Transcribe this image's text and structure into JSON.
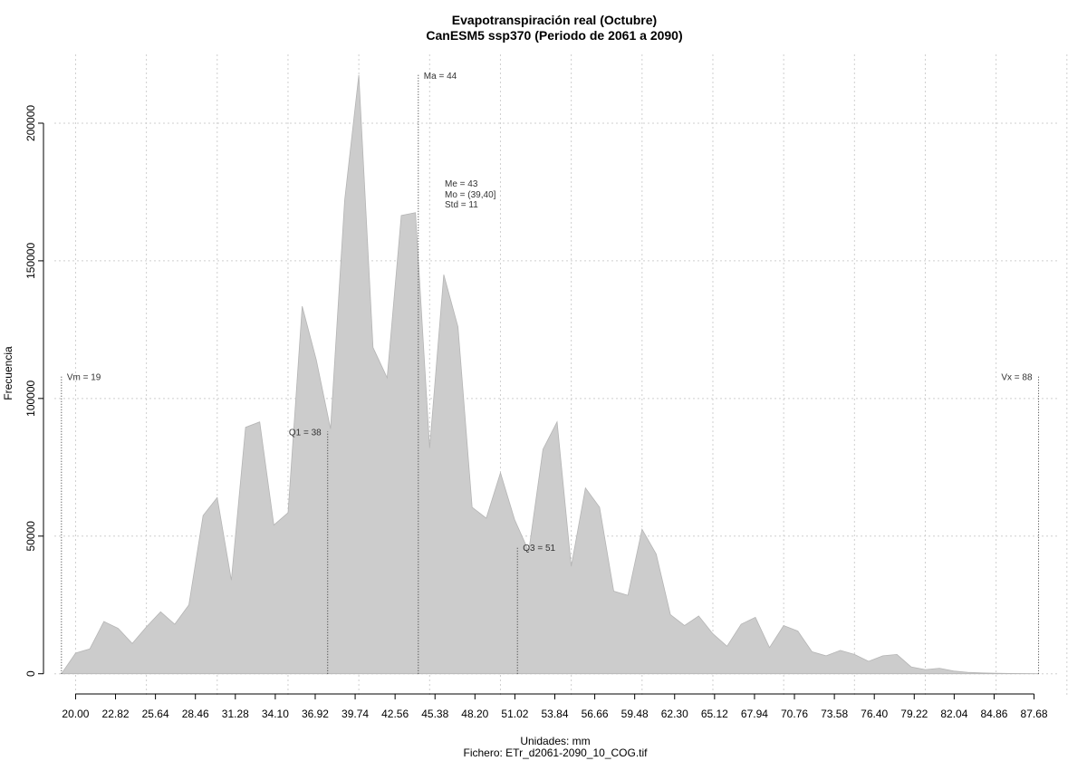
{
  "chart_data": {
    "type": "area",
    "title": "Evapotranspiración real (Octubre)",
    "subtitle": "CanESM5 ssp370 (Periodo de 2061 a 2090)",
    "xlabel": "Unidades: mm",
    "file_label": "Fichero: ETr_d2061-2090_10_COG.tif",
    "ylabel": "Frecuencia",
    "xlim": [
      18.5,
      89.5
    ],
    "ylim": [
      -8000,
      225000
    ],
    "x_ticks": [
      "20.00",
      "22.82",
      "25.64",
      "28.46",
      "31.28",
      "34.10",
      "36.92",
      "39.74",
      "42.56",
      "45.38",
      "48.20",
      "51.02",
      "53.84",
      "56.66",
      "59.48",
      "62.30",
      "65.12",
      "67.94",
      "70.76",
      "73.58",
      "76.40",
      "79.22",
      "82.04",
      "84.86",
      "87.68"
    ],
    "y_ticks": [
      "0",
      "50000",
      "100000",
      "150000",
      "200000"
    ],
    "grid": true,
    "fill_color": "#cccccc",
    "x": [
      19,
      20,
      21,
      22,
      23,
      24,
      25,
      26,
      27,
      28,
      29,
      30,
      31,
      32,
      33,
      34,
      35,
      36,
      37,
      38,
      39,
      40,
      41,
      42,
      43,
      44,
      45,
      46,
      47,
      48,
      49,
      50,
      51,
      52,
      53,
      54,
      55,
      56,
      57,
      58,
      59,
      60,
      61,
      62,
      63,
      64,
      65,
      66,
      67,
      68,
      69,
      70,
      71,
      72,
      73,
      74,
      75,
      76,
      77,
      78,
      79,
      80,
      81,
      82,
      83,
      84,
      85,
      86,
      87,
      88
    ],
    "y": [
      0,
      7500,
      9000,
      19000,
      16500,
      11000,
      17000,
      22500,
      18000,
      25000,
      57500,
      64000,
      34000,
      89500,
      91500,
      54000,
      58500,
      133500,
      114000,
      89000,
      172000,
      217500,
      118500,
      107500,
      166500,
      167500,
      82000,
      145000,
      126000,
      60500,
      56500,
      73000,
      56000,
      44500,
      81500,
      91500,
      39000,
      67500,
      60500,
      30000,
      28500,
      52500,
      43500,
      21500,
      17500,
      21000,
      14500,
      10000,
      18000,
      20500,
      9500,
      17500,
      15500,
      8000,
      6500,
      8500,
      7000,
      4500,
      6500,
      7000,
      2500,
      1500,
      2000,
      1000,
      500,
      300,
      200,
      100,
      50,
      0
    ],
    "markers": [
      {
        "label": "Vm = 19",
        "value": 19,
        "height": 108000
      },
      {
        "label": "Q1 = 38",
        "value": 37.8,
        "height": 88000
      },
      {
        "label": "Ma = 44",
        "value": 44.2,
        "height": 217500
      },
      {
        "label": "Q3 = 51",
        "value": 51.2,
        "height": 46000
      },
      {
        "label": "Vx = 88",
        "value": 88,
        "height": 108000
      }
    ],
    "stats": [
      "Me = 43",
      "Mo = (39,40]",
      "Std = 11"
    ]
  }
}
